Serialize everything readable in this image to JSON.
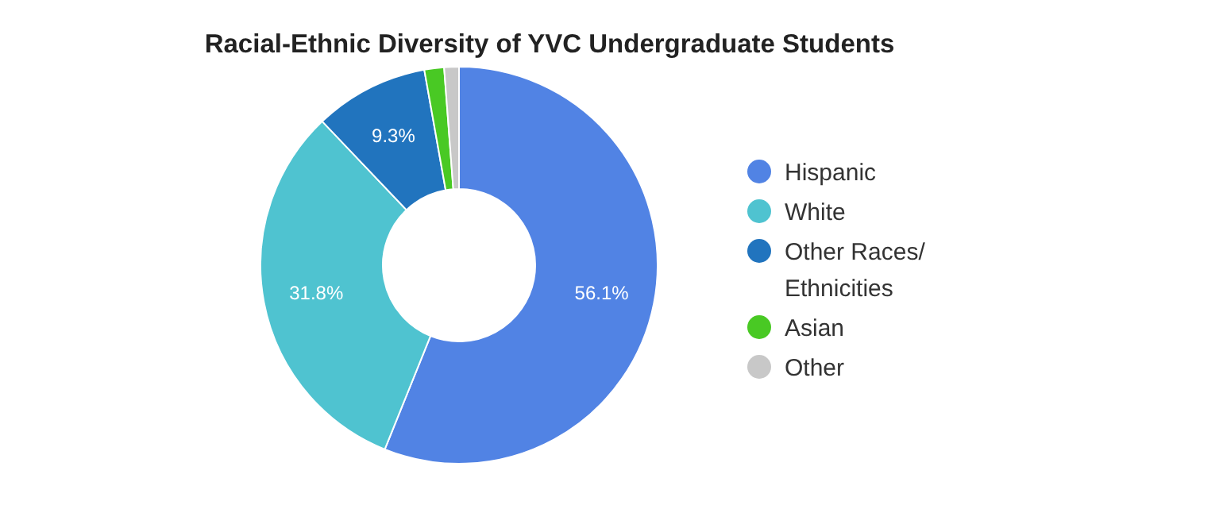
{
  "chart_data": {
    "type": "donut",
    "title": "Racial-Ethnic Diversity of YVC Undergraduate Students",
    "categories": [
      "Hispanic",
      "White",
      "Other Races/\nEthnicities",
      "Asian",
      "Other"
    ],
    "values": [
      56.1,
      31.8,
      9.3,
      1.6,
      1.2
    ],
    "colors": [
      "#5183e4",
      "#4fc3d0",
      "#2174be",
      "#49c924",
      "#c8c8c8"
    ],
    "value_labels": [
      "56.1%",
      "31.8%",
      "9.3%",
      null,
      null
    ],
    "legend": "right"
  }
}
